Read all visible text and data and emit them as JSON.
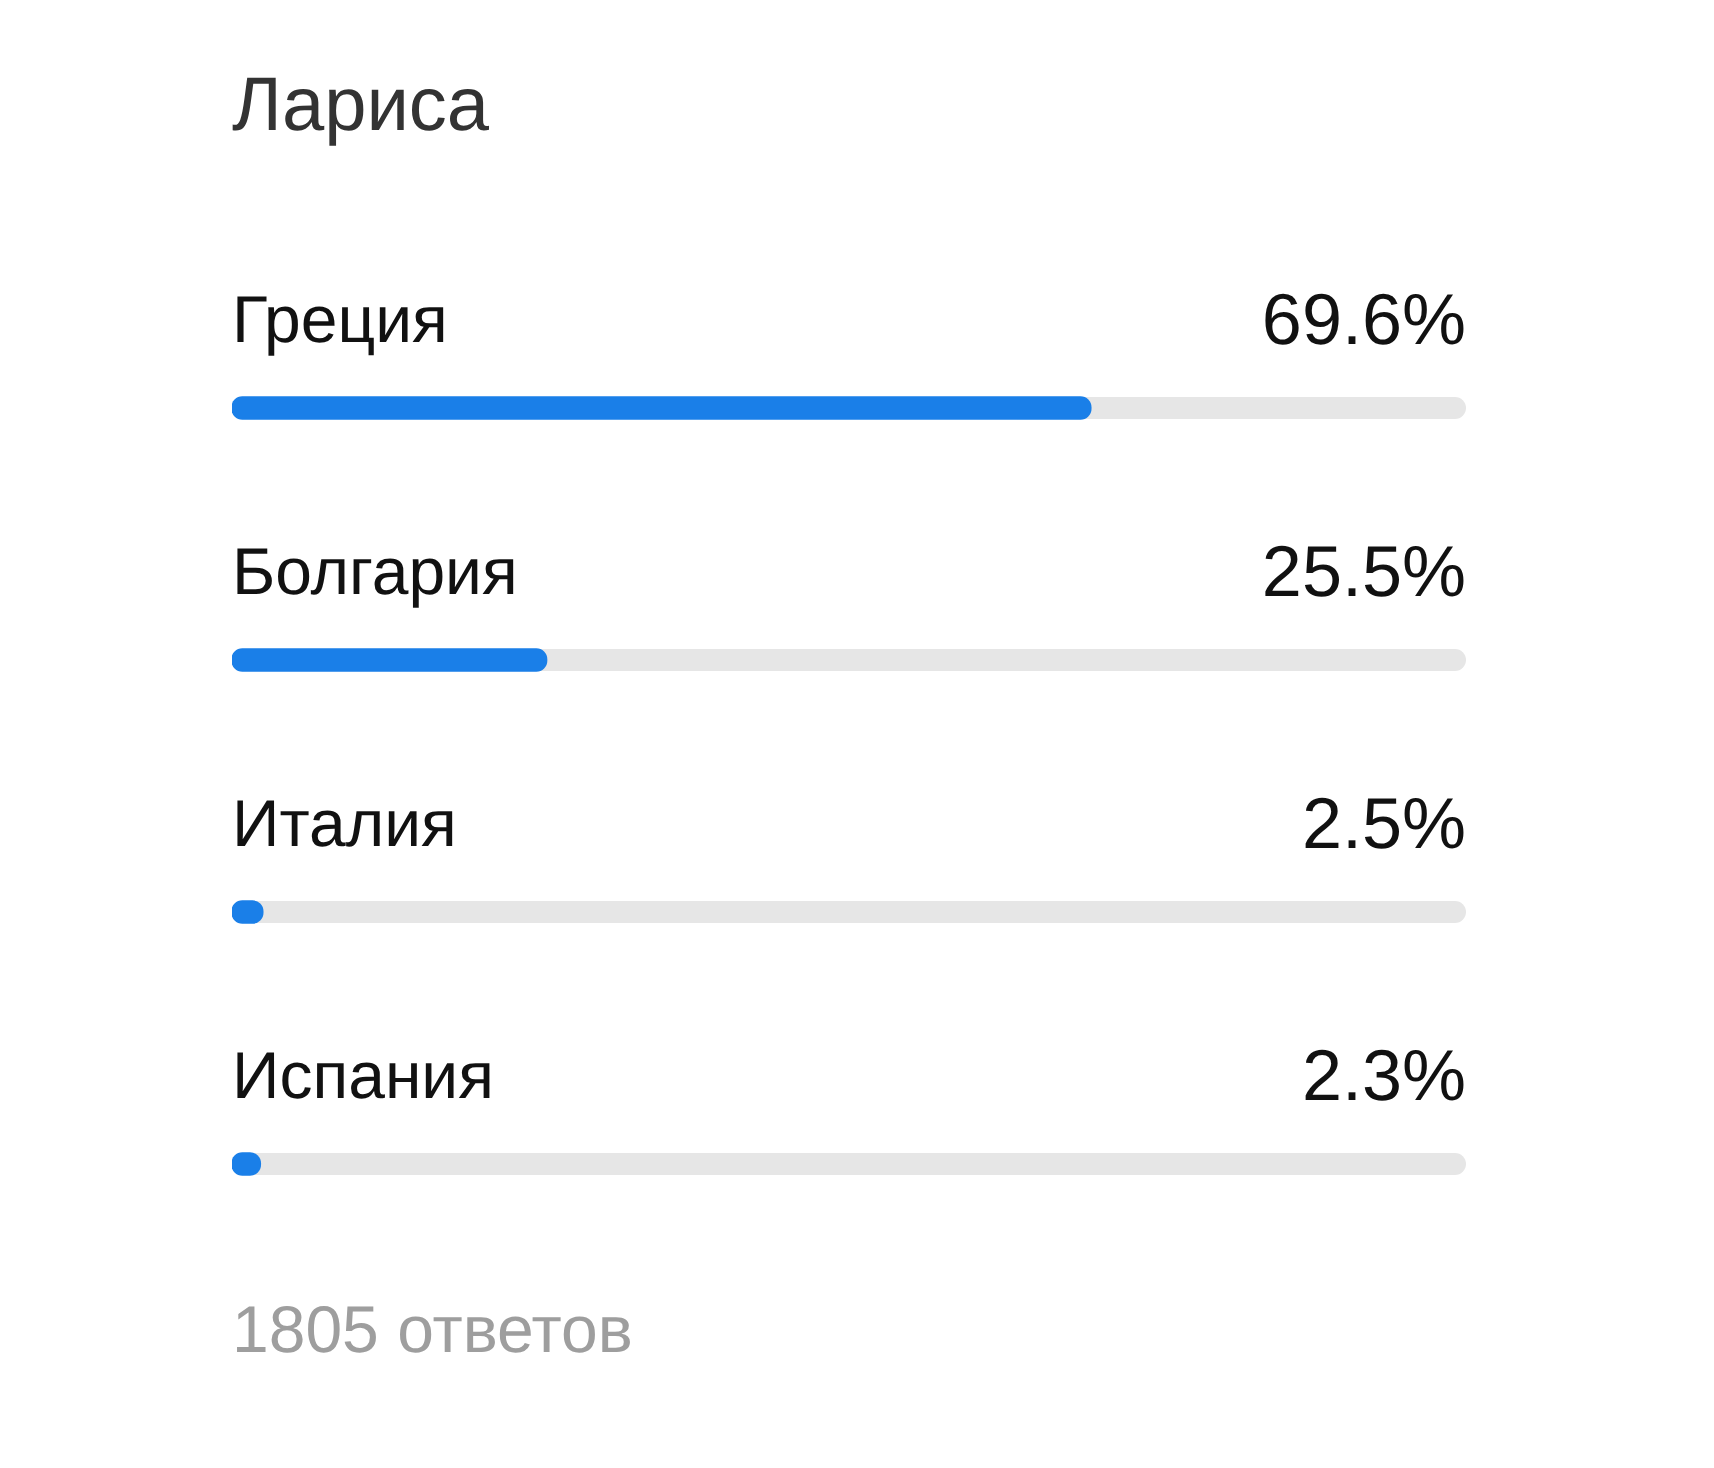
{
  "chart_data": {
    "type": "bar",
    "orientation": "horizontal",
    "title": "Лариса",
    "categories": [
      "Греция",
      "Болгария",
      "Италия",
      "Испания"
    ],
    "values": [
      69.6,
      25.5,
      2.5,
      2.3
    ],
    "value_labels": [
      "69.6%",
      "25.5%",
      "2.5%",
      "2.3%"
    ],
    "color": "#1a7fe8",
    "xlim": [
      0,
      100
    ],
    "tick_labels": false,
    "legend": false,
    "annotations": [
      "1805 ответов"
    ]
  }
}
